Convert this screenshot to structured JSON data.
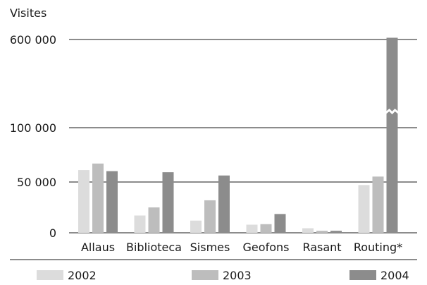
{
  "chart_data": {
    "type": "bar",
    "ylabel": "Visites",
    "categories": [
      "Allaus",
      "Biblioteca",
      "Sismes",
      "Geofons",
      "Rasant",
      "Routing*"
    ],
    "series": [
      {
        "name": "2002",
        "color": "#dcdcdc",
        "values": [
          61000,
          17000,
          12000,
          8000,
          4500,
          47000
        ]
      },
      {
        "name": "2003",
        "color": "#bdbdbd",
        "values": [
          67000,
          25000,
          32000,
          8500,
          2000,
          55000
        ]
      },
      {
        "name": "2004",
        "color": "#8c8c8c",
        "values": [
          60000,
          59000,
          56000,
          18500,
          2000,
          610000
        ]
      }
    ],
    "y_ticks": [
      {
        "value": 0,
        "label": "0"
      },
      {
        "value": 50000,
        "label": "50 000"
      },
      {
        "value": 100000,
        "label": "100 000"
      },
      {
        "value": 600000,
        "label": "600 000"
      }
    ],
    "axis_break": {
      "from": 100000,
      "to": 600000,
      "series": "2004",
      "category": "Routing*"
    },
    "legend_position": "bottom",
    "grid": "horizontal at ticks"
  }
}
